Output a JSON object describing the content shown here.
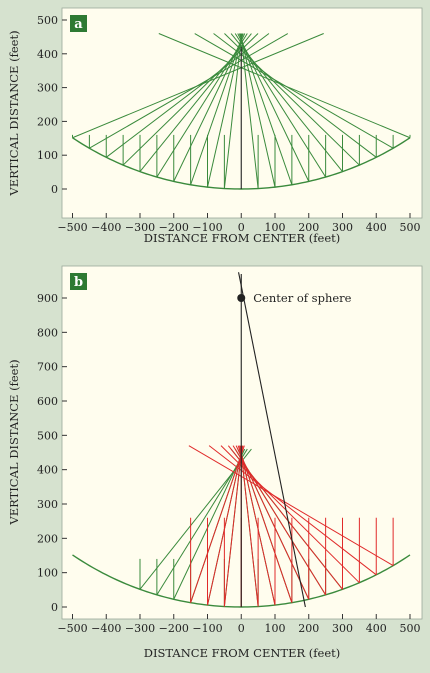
{
  "colors": {
    "page_background": "#d6e2cf",
    "plot_background": "#fffdee",
    "green": "#3a8a3c",
    "red": "#e02a2a",
    "black": "#222222",
    "badge": "#2e7a33"
  },
  "chart_data": [
    {
      "panel_label": "a",
      "type": "line",
      "xlabel": "DISTANCE FROM CENTER (feet)",
      "ylabel": "VERTICAL DISTANCE (feet)",
      "xlim": [
        -520,
        520
      ],
      "ylim": [
        -15,
        510
      ],
      "xticks": [
        -500,
        -400,
        -300,
        -200,
        -100,
        0,
        100,
        200,
        300,
        400,
        500
      ],
      "yticks": [
        0,
        100,
        200,
        300,
        400,
        500
      ],
      "xtick_labels": [
        "−500",
        "−400",
        "−300",
        "−200",
        "−100",
        "0",
        "100",
        "200",
        "300",
        "400",
        "500"
      ],
      "ytick_labels": [
        "0",
        "100",
        "200",
        "300",
        "400",
        "500"
      ],
      "mirror": {
        "sphere_center": [
          0,
          900
        ],
        "radius": 900,
        "x_range": [
          -500,
          500
        ],
        "color": "green"
      },
      "rays": {
        "x_positions": [
          -500,
          -450,
          -400,
          -350,
          -300,
          -250,
          -200,
          -150,
          -100,
          -50,
          50,
          100,
          150,
          200,
          250,
          300,
          350,
          400,
          450,
          500
        ],
        "incident_from_y": 160,
        "reflect_to_y": 460,
        "color": "green"
      },
      "vertical_axis_line": {
        "x": 0,
        "y_range": [
          0,
          420
        ],
        "color": "black"
      }
    },
    {
      "panel_label": "b",
      "type": "line",
      "xlabel": "DISTANCE FROM CENTER (feet)",
      "ylabel": "VERTICAL DISTANCE (feet)",
      "xlim": [
        -520,
        520
      ],
      "ylim": [
        -20,
        985
      ],
      "xticks": [
        -500,
        -400,
        -300,
        -200,
        -100,
        0,
        100,
        200,
        300,
        400,
        500
      ],
      "yticks": [
        0,
        100,
        200,
        300,
        400,
        500,
        600,
        700,
        800,
        900
      ],
      "xtick_labels": [
        "−500",
        "−400",
        "−300",
        "−200",
        "−100",
        "0",
        "100",
        "200",
        "300",
        "400",
        "500"
      ],
      "ytick_labels": [
        "0",
        "100",
        "200",
        "300",
        "400",
        "500",
        "600",
        "700",
        "800",
        "900"
      ],
      "mirror": {
        "sphere_center": [
          0,
          900
        ],
        "radius": 900,
        "x_range": [
          -500,
          500
        ],
        "color": "green"
      },
      "center_point": {
        "x": 0,
        "y": 900,
        "label": "Center of sphere"
      },
      "series": [
        {
          "color": "green",
          "source_x": 0,
          "rays_x": [
            -300,
            -250,
            -200,
            -150,
            -100,
            -50,
            50,
            100,
            150,
            200,
            250,
            300
          ],
          "incident_from_y": 140,
          "reflect_to_y": 460
        },
        {
          "color": "red",
          "source_x": 100,
          "rays_x": [
            -150,
            -100,
            -50,
            0,
            50,
            100,
            150,
            200,
            250,
            300,
            350,
            400,
            450
          ],
          "incident_from_y": 260,
          "reflect_to_y": 470
        }
      ],
      "axis_lines": [
        {
          "from": [
            0,
            970
          ],
          "to": [
            0,
            0
          ],
          "color": "black"
        },
        {
          "from": [
            -8,
            975
          ],
          "to": [
            190,
            0
          ],
          "color": "black"
        }
      ]
    }
  ]
}
